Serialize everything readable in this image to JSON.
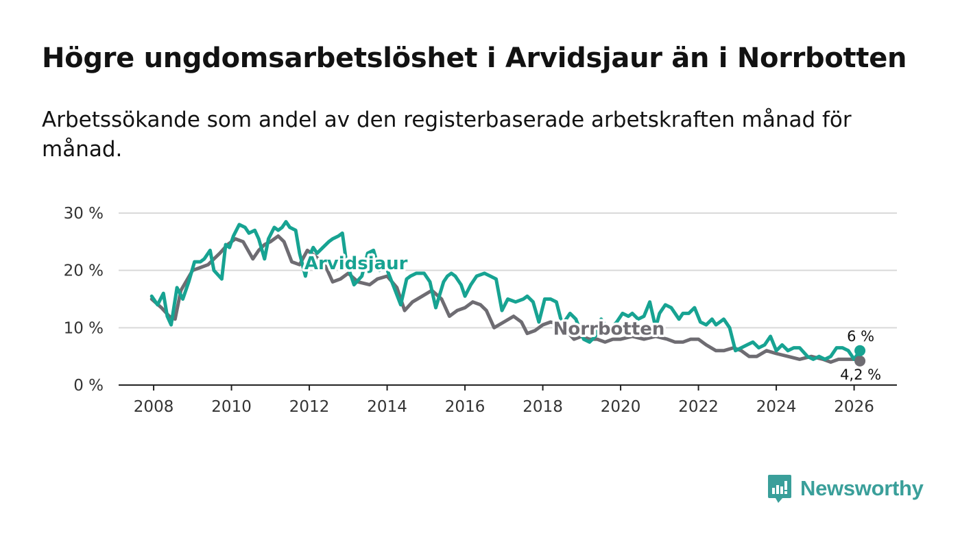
{
  "title": "Högre ungdomsarbetslöshet i Arvidsjaur än i Norrbotten",
  "subtitle": "Arbetssökande som andel av den registerbaserade arbetskraften månad för månad.",
  "brand": {
    "name": "Newsworthy",
    "icon": "bar-chart-speech-bubble-icon",
    "color": "#3a9f9a"
  },
  "chart_data": {
    "type": "line",
    "ylim": [
      0,
      30
    ],
    "xlim": [
      2007.1,
      2027.1
    ],
    "yticks": [
      0,
      10,
      20,
      30
    ],
    "ytick_labels": [
      "0 %",
      "10 %",
      "20 %",
      "30 %"
    ],
    "xticks": [
      2008,
      2010,
      2012,
      2014,
      2016,
      2018,
      2020,
      2022,
      2024,
      2026
    ],
    "xtick_labels": [
      "2008",
      "2010",
      "2012",
      "2014",
      "2016",
      "2018",
      "2020",
      "2022",
      "2024",
      "2026"
    ],
    "grid": true,
    "series": [
      {
        "name": "Norrbotten",
        "label": "Norrbotten",
        "color": "#6e6c72",
        "end_label": "4,2 %",
        "x": [
          2007.95,
          2008.2,
          2008.4,
          2008.55,
          2008.7,
          2009.0,
          2009.2,
          2009.4,
          2009.55,
          2009.7,
          2009.9,
          2010.1,
          2010.3,
          2010.55,
          2010.7,
          2010.85,
          2011.0,
          2011.2,
          2011.35,
          2011.55,
          2011.75,
          2011.95,
          2012.15,
          2012.4,
          2012.6,
          2012.8,
          2013.0,
          2013.25,
          2013.55,
          2013.75,
          2014.0,
          2014.25,
          2014.45,
          2014.65,
          2014.9,
          2015.15,
          2015.4,
          2015.6,
          2015.8,
          2016.0,
          2016.2,
          2016.4,
          2016.55,
          2016.75,
          2017.0,
          2017.25,
          2017.45,
          2017.6,
          2017.8,
          2018.0,
          2018.2,
          2018.45,
          2018.6,
          2018.8,
          2019.0,
          2019.2,
          2019.4,
          2019.6,
          2019.8,
          2020.0,
          2020.3,
          2020.6,
          2020.9,
          2021.2,
          2021.4,
          2021.6,
          2021.8,
          2022.0,
          2022.2,
          2022.45,
          2022.65,
          2022.9,
          2023.1,
          2023.3,
          2023.5,
          2023.75,
          2024.0,
          2024.3,
          2024.6,
          2024.9,
          2025.2,
          2025.4,
          2025.6,
          2025.8,
          2026.0,
          2026.15
        ],
        "y": [
          15.0,
          13.5,
          12.0,
          11.5,
          16.5,
          20.0,
          20.5,
          21.0,
          22.0,
          23.0,
          24.5,
          25.5,
          25.0,
          22.0,
          23.5,
          24.5,
          25.0,
          26.0,
          25.0,
          21.5,
          21.0,
          23.5,
          22.5,
          21.0,
          18.0,
          18.5,
          19.5,
          18.0,
          17.5,
          18.5,
          19.0,
          17.0,
          13.0,
          14.5,
          15.5,
          16.5,
          15.0,
          12.0,
          13.0,
          13.5,
          14.5,
          14.0,
          13.0,
          10.0,
          11.0,
          12.0,
          11.0,
          9.0,
          9.5,
          10.5,
          11.0,
          10.5,
          9.5,
          8.0,
          8.5,
          8.0,
          8.0,
          7.5,
          8.0,
          8.0,
          8.5,
          8.0,
          8.5,
          8.0,
          7.5,
          7.5,
          8.0,
          8.0,
          7.0,
          6.0,
          6.0,
          6.5,
          6.0,
          5.0,
          5.0,
          6.0,
          5.5,
          5.0,
          4.5,
          5.0,
          4.5,
          4.0,
          4.5,
          4.5,
          4.5,
          4.2
        ]
      },
      {
        "name": "Arvidsjaur",
        "label": "Arvidsjaur",
        "color": "#17a392",
        "end_label": "6 %",
        "x": [
          2007.95,
          2008.1,
          2008.25,
          2008.35,
          2008.45,
          2008.6,
          2008.75,
          2008.9,
          2009.05,
          2009.2,
          2009.3,
          2009.45,
          2009.55,
          2009.75,
          2009.85,
          2009.95,
          2010.05,
          2010.2,
          2010.35,
          2010.45,
          2010.6,
          2010.7,
          2010.85,
          2010.95,
          2011.1,
          2011.2,
          2011.3,
          2011.4,
          2011.5,
          2011.65,
          2011.75,
          2011.9,
          2012.0,
          2012.1,
          2012.2,
          2012.35,
          2012.5,
          2012.6,
          2012.75,
          2012.85,
          2012.95,
          2013.15,
          2013.35,
          2013.5,
          2013.65,
          2013.8,
          2013.95,
          2014.15,
          2014.35,
          2014.5,
          2014.6,
          2014.75,
          2014.95,
          2015.1,
          2015.25,
          2015.45,
          2015.55,
          2015.65,
          2015.75,
          2015.9,
          2016.0,
          2016.15,
          2016.3,
          2016.5,
          2016.65,
          2016.8,
          2016.95,
          2017.1,
          2017.3,
          2017.5,
          2017.6,
          2017.75,
          2017.9,
          2018.05,
          2018.2,
          2018.35,
          2018.5,
          2018.7,
          2018.85,
          2019.05,
          2019.2,
          2019.35,
          2019.5,
          2019.7,
          2019.9,
          2020.05,
          2020.2,
          2020.3,
          2020.45,
          2020.6,
          2020.75,
          2020.9,
          2021.0,
          2021.15,
          2021.3,
          2021.5,
          2021.6,
          2021.75,
          2021.9,
          2022.05,
          2022.2,
          2022.35,
          2022.45,
          2022.55,
          2022.65,
          2022.8,
          2022.95,
          2023.1,
          2023.25,
          2023.4,
          2023.55,
          2023.7,
          2023.85,
          2024.0,
          2024.15,
          2024.3,
          2024.45,
          2024.6,
          2024.8,
          2024.95,
          2025.1,
          2025.25,
          2025.4,
          2025.55,
          2025.7,
          2025.85,
          2026.0,
          2026.15
        ],
        "y": [
          15.5,
          14.0,
          16.0,
          12.0,
          10.5,
          17.0,
          15.0,
          18.0,
          21.5,
          21.5,
          22.0,
          23.5,
          20.0,
          18.5,
          24.5,
          24.0,
          26.0,
          28.0,
          27.5,
          26.5,
          27.0,
          25.5,
          22.0,
          25.5,
          27.5,
          27.0,
          27.5,
          28.5,
          27.5,
          27.0,
          23.0,
          19.0,
          22.5,
          24.0,
          23.0,
          24.0,
          25.0,
          25.5,
          26.0,
          26.5,
          21.5,
          17.5,
          19.0,
          23.0,
          23.5,
          20.0,
          21.0,
          17.5,
          14.0,
          18.5,
          19.0,
          19.5,
          19.5,
          18.0,
          13.5,
          18.0,
          19.0,
          19.5,
          19.0,
          17.5,
          15.5,
          17.5,
          19.0,
          19.5,
          19.0,
          18.5,
          13.0,
          15.0,
          14.5,
          15.0,
          15.5,
          14.5,
          11.0,
          15.0,
          15.0,
          14.5,
          10.5,
          12.5,
          11.5,
          8.0,
          7.5,
          8.5,
          11.5,
          9.5,
          11.0,
          12.5,
          12.0,
          12.5,
          11.5,
          12.0,
          14.5,
          10.0,
          12.5,
          14.0,
          13.5,
          11.5,
          12.5,
          12.5,
          13.5,
          11.0,
          10.5,
          11.5,
          10.5,
          11.0,
          11.5,
          10.0,
          6.0,
          6.5,
          7.0,
          7.5,
          6.5,
          7.0,
          8.5,
          6.0,
          7.0,
          6.0,
          6.5,
          6.5,
          5.0,
          4.5,
          5.0,
          4.5,
          5.0,
          6.5,
          6.5,
          6.0,
          4.5,
          6.0
        ]
      }
    ]
  }
}
